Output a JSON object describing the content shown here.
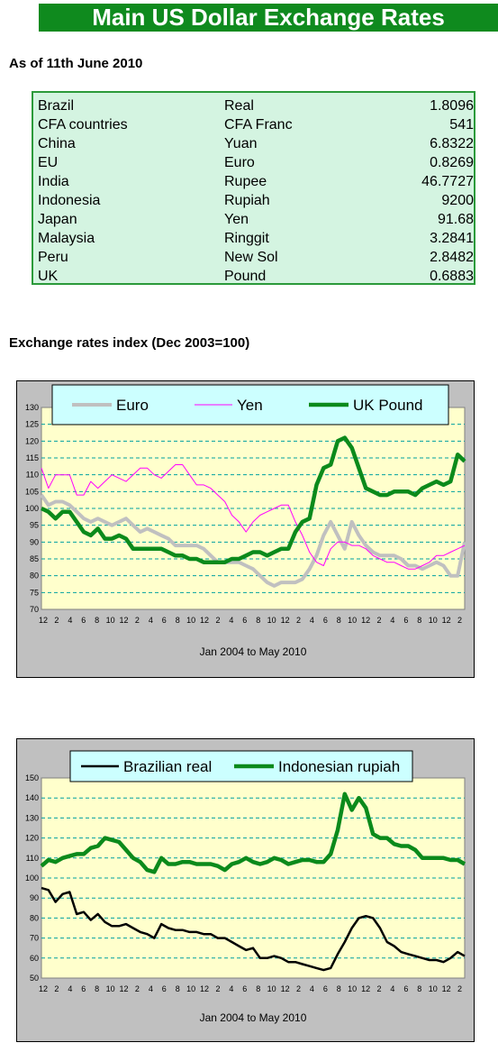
{
  "header": {
    "title": "Main US Dollar Exchange Rates"
  },
  "as_of": "As of 11th June 2010",
  "rates": [
    {
      "country": "Brazil",
      "currency": "Real",
      "rate": "1.8096"
    },
    {
      "country": "CFA countries",
      "currency": "CFA Franc",
      "rate": "541"
    },
    {
      "country": "China",
      "currency": "Yuan",
      "rate": "6.8322"
    },
    {
      "country": "EU",
      "currency": "Euro",
      "rate": "0.8269"
    },
    {
      "country": "India",
      "currency": "Rupee",
      "rate": "46.7727"
    },
    {
      "country": "Indonesia",
      "currency": "Rupiah",
      "rate": "9200"
    },
    {
      "country": "Japan",
      "currency": "Yen",
      "rate": "91.68"
    },
    {
      "country": "Malaysia",
      "currency": "Ringgit",
      "rate": "3.2841"
    },
    {
      "country": "Peru",
      "currency": "New Sol",
      "rate": "2.8482"
    },
    {
      "country": "UK",
      "currency": "Pound",
      "rate": "0.6883"
    }
  ],
  "section_title": "Exchange rates index (Dec 2003=100)",
  "chart_data": [
    {
      "type": "line",
      "xlabel": "Jan 2004 to May 2010",
      "ylabel": "",
      "ylim": [
        70,
        130
      ],
      "yticks": [
        70,
        75,
        80,
        85,
        90,
        95,
        100,
        105,
        110,
        115,
        120,
        125,
        130
      ],
      "x_tick_labels": [
        "12",
        "2",
        "4",
        "6",
        "8",
        "10",
        "12",
        "2",
        "4",
        "6",
        "8",
        "10",
        "12",
        "2",
        "4",
        "6",
        "8",
        "10",
        "12",
        "2",
        "4",
        "6",
        "8",
        "10",
        "12",
        "2",
        "4",
        "6",
        "8",
        "10",
        "12",
        "2"
      ],
      "grid": "horizontal dashed",
      "legend": "top",
      "colors": {
        "plot_bg": "#ffffcc",
        "frame_bg": "#c0c0c0",
        "grid": "#00a0a0",
        "legend_bg": "#ccffff"
      },
      "series": [
        {
          "name": "Euro",
          "color": "#c0c0c0",
          "values": [
            104,
            101,
            102,
            102,
            101,
            99,
            97,
            96,
            97,
            96,
            95,
            96,
            97,
            95,
            93,
            94,
            93,
            92,
            91,
            89,
            89,
            89,
            89,
            88,
            86,
            84,
            84,
            84,
            84,
            83,
            82,
            80,
            78,
            77,
            78,
            78,
            78,
            79,
            82,
            86,
            92,
            96,
            92,
            88,
            96,
            92,
            89,
            87,
            86,
            86,
            86,
            85,
            83,
            83,
            82,
            83,
            84,
            83,
            80,
            80,
            90
          ]
        },
        {
          "name": "Yen",
          "color": "#ff00ff",
          "values": [
            112,
            106,
            110,
            110,
            110,
            104,
            104,
            108,
            106,
            108,
            110,
            109,
            108,
            110,
            112,
            112,
            110,
            109,
            111,
            113,
            113,
            110,
            107,
            107,
            106,
            104,
            102,
            98,
            96,
            93,
            96,
            98,
            99,
            100,
            101,
            101,
            96,
            92,
            87,
            84,
            83,
            88,
            90,
            90,
            89,
            89,
            88,
            86,
            85,
            84,
            84,
            83,
            82,
            82,
            83,
            84,
            86,
            86,
            87,
            88,
            89
          ]
        },
        {
          "name": "UK Pound",
          "color": "#0b8a1b",
          "values": [
            100,
            99,
            97,
            99,
            99,
            96,
            93,
            92,
            94,
            91,
            91,
            92,
            91,
            88,
            88,
            88,
            88,
            88,
            87,
            86,
            86,
            85,
            85,
            84,
            84,
            84,
            84,
            85,
            85,
            86,
            87,
            87,
            86,
            87,
            88,
            88,
            93,
            96,
            97,
            107,
            112,
            113,
            120,
            121,
            118,
            112,
            106,
            105,
            104,
            104,
            105,
            105,
            105,
            104,
            106,
            107,
            108,
            107,
            108,
            116,
            114
          ]
        }
      ]
    },
    {
      "type": "line",
      "xlabel": "Jan 2004 to May 2010",
      "ylabel": "",
      "ylim": [
        50,
        150
      ],
      "yticks": [
        50,
        60,
        70,
        80,
        90,
        100,
        110,
        120,
        130,
        140,
        150
      ],
      "x_tick_labels": [
        "12",
        "2",
        "4",
        "6",
        "8",
        "10",
        "12",
        "2",
        "4",
        "6",
        "8",
        "10",
        "12",
        "2",
        "4",
        "6",
        "8",
        "10",
        "12",
        "2",
        "4",
        "6",
        "8",
        "10",
        "12",
        "2",
        "4",
        "6",
        "8",
        "10",
        "12",
        "2"
      ],
      "grid": "horizontal dashed",
      "legend": "top",
      "colors": {
        "plot_bg": "#ffffcc",
        "frame_bg": "#c0c0c0",
        "grid": "#00a0a0",
        "legend_bg": "#ccffff"
      },
      "series": [
        {
          "name": "Brazilian real",
          "color": "#000000",
          "values": [
            95,
            94,
            88,
            92,
            93,
            82,
            83,
            79,
            82,
            78,
            76,
            76,
            77,
            75,
            73,
            72,
            70,
            77,
            75,
            74,
            74,
            73,
            73,
            72,
            72,
            70,
            70,
            68,
            66,
            64,
            65,
            60,
            60,
            61,
            60,
            58,
            58,
            57,
            56,
            55,
            54,
            55,
            62,
            68,
            75,
            80,
            81,
            80,
            75,
            68,
            66,
            63,
            62,
            61,
            60,
            59,
            59,
            58,
            60,
            63,
            61
          ]
        },
        {
          "name": "Indonesian rupiah",
          "color": "#0b8a1b",
          "values": [
            106,
            109,
            108,
            110,
            111,
            112,
            112,
            115,
            116,
            120,
            119,
            118,
            114,
            110,
            108,
            104,
            103,
            110,
            107,
            107,
            108,
            108,
            107,
            107,
            107,
            106,
            104,
            107,
            108,
            110,
            108,
            107,
            108,
            110,
            109,
            107,
            108,
            109,
            109,
            108,
            108,
            112,
            124,
            142,
            134,
            140,
            135,
            122,
            120,
            120,
            117,
            116,
            116,
            114,
            110,
            110,
            110,
            110,
            109,
            109,
            107
          ]
        }
      ]
    }
  ]
}
